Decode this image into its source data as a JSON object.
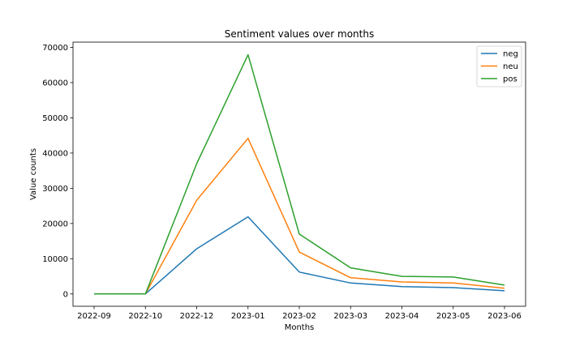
{
  "chart_data": {
    "type": "line",
    "title": "Sentiment values over months",
    "xlabel": "Months",
    "ylabel": "Value counts",
    "categories": [
      "2022-09",
      "2022-10",
      "2022-12",
      "2023-01",
      "2023-02",
      "2023-03",
      "2023-04",
      "2023-05",
      "2023-06"
    ],
    "ylim": [
      -3500,
      71500
    ],
    "yticks": [
      0,
      10000,
      20000,
      30000,
      40000,
      50000,
      60000,
      70000
    ],
    "grid": false,
    "legend_position": "top-right",
    "series": [
      {
        "name": "neg",
        "color": "#1f77b4",
        "values": [
          0,
          0,
          12800,
          21900,
          6200,
          3100,
          2100,
          1800,
          900
        ]
      },
      {
        "name": "neu",
        "color": "#ff7f0e",
        "values": [
          0,
          0,
          26600,
          44200,
          11900,
          4600,
          3400,
          3100,
          1600
        ]
      },
      {
        "name": "pos",
        "color": "#2ca02c",
        "values": [
          0,
          0,
          37000,
          67900,
          17000,
          7400,
          5000,
          4800,
          2500
        ]
      }
    ]
  }
}
